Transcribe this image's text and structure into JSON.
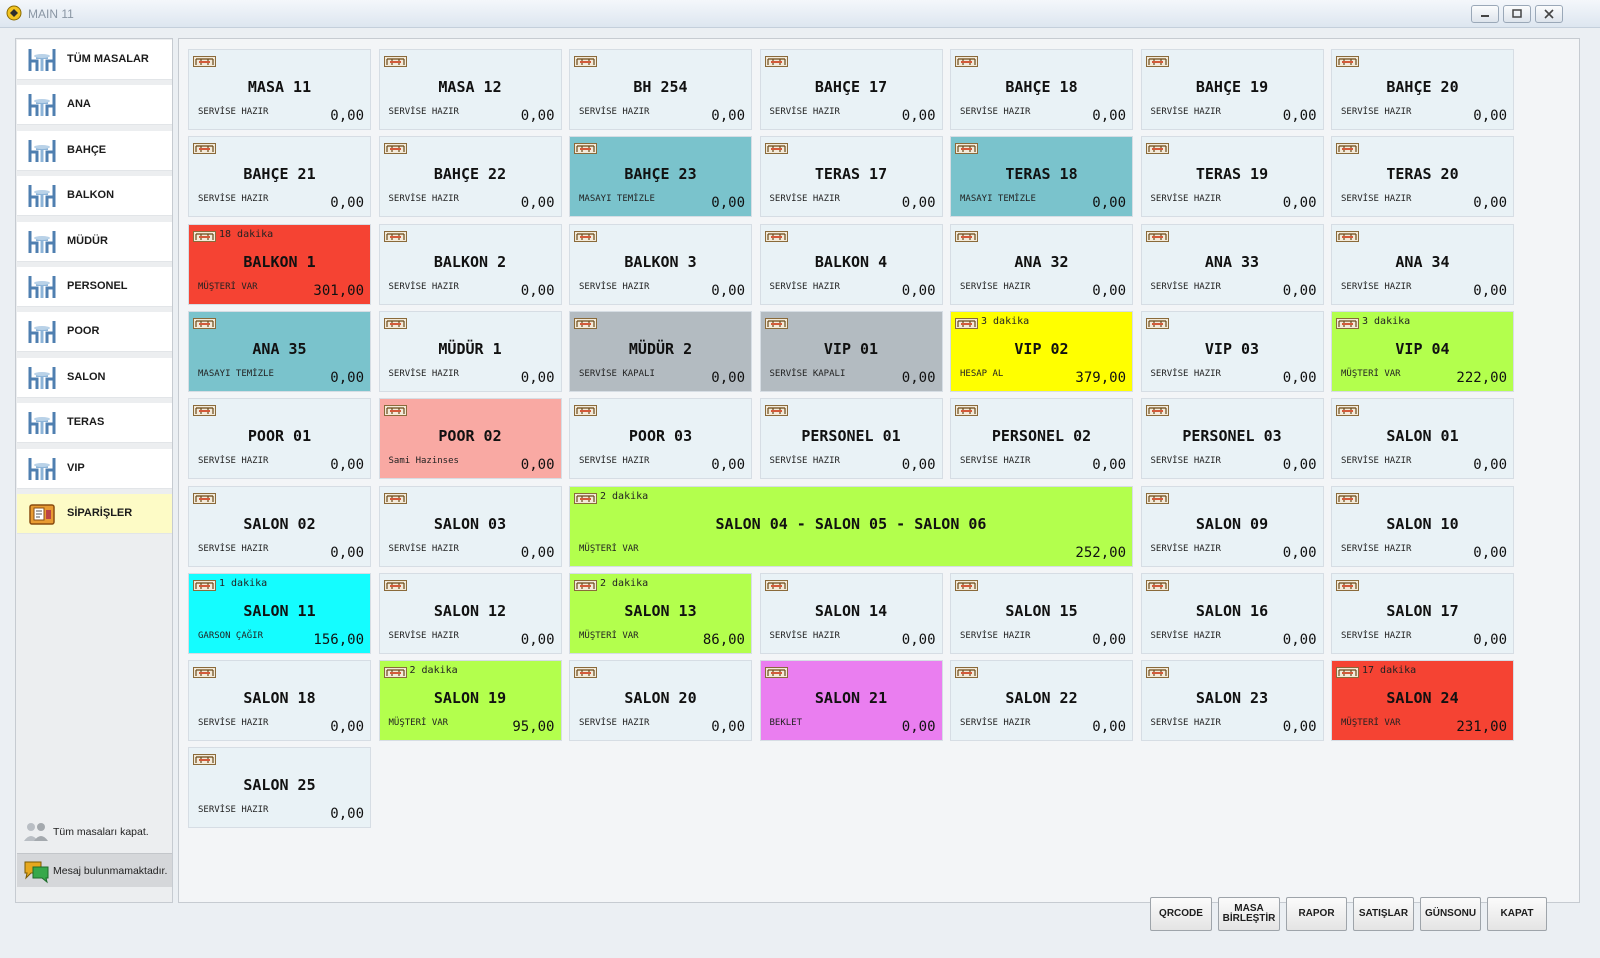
{
  "window": {
    "title": "MAIN 11"
  },
  "sidebar": {
    "categories": [
      {
        "label": "TÜM MASALAR",
        "icon": "table-chairs-icon"
      },
      {
        "label": "ANA",
        "icon": "table-chairs-icon"
      },
      {
        "label": "BAHÇE",
        "icon": "table-chairs-icon"
      },
      {
        "label": "BALKON",
        "icon": "table-chairs-icon"
      },
      {
        "label": "MÜDÜR",
        "icon": "table-chairs-icon"
      },
      {
        "label": "PERSONEL",
        "icon": "table-chairs-icon"
      },
      {
        "label": "POOR",
        "icon": "table-chairs-icon"
      },
      {
        "label": "SALON",
        "icon": "table-chairs-icon"
      },
      {
        "label": "TERAS",
        "icon": "table-chairs-icon"
      },
      {
        "label": "VIP",
        "icon": "table-chairs-icon"
      },
      {
        "label": "SİPARİŞLER",
        "icon": "orders-icon",
        "selected": true
      }
    ],
    "close_all_label": "Tüm masaları kapat.",
    "message_label": "Mesaj bulunmamaktadır."
  },
  "colors": {
    "idle": "#e9f2f6",
    "clean": "#7ac3cc",
    "closed": "#b3bbc1",
    "alert_red": "#f54333",
    "bill_yellow": "#ffff00",
    "customer_green": "#b3ff4d",
    "named_pink": "#f9a9a3",
    "waiter_cyan": "#14fdff",
    "wait_magenta": "#ea7ef0"
  },
  "tables": [
    {
      "name": "MASA 11",
      "status": "SERVİSE HAZIR",
      "amount": "0,00",
      "state": "idle"
    },
    {
      "name": "MASA 12",
      "status": "SERVİSE HAZIR",
      "amount": "0,00",
      "state": "idle"
    },
    {
      "name": "BH 254",
      "status": "SERVİSE HAZIR",
      "amount": "0,00",
      "state": "idle"
    },
    {
      "name": "BAHÇE 17",
      "status": "SERVİSE HAZIR",
      "amount": "0,00",
      "state": "idle"
    },
    {
      "name": "BAHÇE 18",
      "status": "SERVİSE HAZIR",
      "amount": "0,00",
      "state": "idle"
    },
    {
      "name": "BAHÇE 19",
      "status": "SERVİSE HAZIR",
      "amount": "0,00",
      "state": "idle"
    },
    {
      "name": "BAHÇE 20",
      "status": "SERVİSE HAZIR",
      "amount": "0,00",
      "state": "idle"
    },
    {
      "name": "BAHÇE 21",
      "status": "SERVİSE HAZIR",
      "amount": "0,00",
      "state": "idle"
    },
    {
      "name": "BAHÇE 22",
      "status": "SERVİSE HAZIR",
      "amount": "0,00",
      "state": "idle"
    },
    {
      "name": "BAHÇE 23",
      "status": "MASAYI TEMİZLE",
      "amount": "0,00",
      "state": "clean"
    },
    {
      "name": "TERAS 17",
      "status": "SERVİSE HAZIR",
      "amount": "0,00",
      "state": "idle"
    },
    {
      "name": "TERAS 18",
      "status": "MASAYI TEMİZLE",
      "amount": "0,00",
      "state": "clean"
    },
    {
      "name": "TERAS 19",
      "status": "SERVİSE HAZIR",
      "amount": "0,00",
      "state": "idle"
    },
    {
      "name": "TERAS 20",
      "status": "SERVİSE HAZIR",
      "amount": "0,00",
      "state": "idle"
    },
    {
      "name": "BALKON 1",
      "status": "MÜŞTERİ VAR",
      "amount": "301,00",
      "state": "alert_red",
      "time": "18 dakika"
    },
    {
      "name": "BALKON 2",
      "status": "SERVİSE HAZIR",
      "amount": "0,00",
      "state": "idle"
    },
    {
      "name": "BALKON 3",
      "status": "SERVİSE HAZIR",
      "amount": "0,00",
      "state": "idle"
    },
    {
      "name": "BALKON 4",
      "status": "SERVİSE HAZIR",
      "amount": "0,00",
      "state": "idle"
    },
    {
      "name": "ANA 32",
      "status": "SERVİSE HAZIR",
      "amount": "0,00",
      "state": "idle"
    },
    {
      "name": "ANA 33",
      "status": "SERVİSE HAZIR",
      "amount": "0,00",
      "state": "idle"
    },
    {
      "name": "ANA 34",
      "status": "SERVİSE HAZIR",
      "amount": "0,00",
      "state": "idle"
    },
    {
      "name": "ANA 35",
      "status": "MASAYI TEMİZLE",
      "amount": "0,00",
      "state": "clean"
    },
    {
      "name": "MÜDÜR 1",
      "status": "SERVİSE HAZIR",
      "amount": "0,00",
      "state": "idle"
    },
    {
      "name": "MÜDÜR 2",
      "status": "SERVİSE KAPALI",
      "amount": "0,00",
      "state": "closed"
    },
    {
      "name": "VIP 01",
      "status": "SERVİSE KAPALI",
      "amount": "0,00",
      "state": "closed"
    },
    {
      "name": "VIP 02",
      "status": "HESAP AL",
      "amount": "379,00",
      "state": "bill_yellow",
      "time": "3 dakika"
    },
    {
      "name": "VIP 03",
      "status": "SERVİSE HAZIR",
      "amount": "0,00",
      "state": "idle"
    },
    {
      "name": "VIP 04",
      "status": "MÜŞTERİ VAR",
      "amount": "222,00",
      "state": "customer_green",
      "time": "3 dakika"
    },
    {
      "name": "POOR 01",
      "status": "SERVİSE HAZIR",
      "amount": "0,00",
      "state": "idle"
    },
    {
      "name": "POOR 02",
      "status": "Sami Hazinses",
      "amount": "0,00",
      "state": "named_pink"
    },
    {
      "name": "POOR 03",
      "status": "SERVİSE HAZIR",
      "amount": "0,00",
      "state": "idle"
    },
    {
      "name": "PERSONEL 01",
      "status": "SERVİSE HAZIR",
      "amount": "0,00",
      "state": "idle"
    },
    {
      "name": "PERSONEL 02",
      "status": "SERVİSE HAZIR",
      "amount": "0,00",
      "state": "idle"
    },
    {
      "name": "PERSONEL 03",
      "status": "SERVİSE HAZIR",
      "amount": "0,00",
      "state": "idle"
    },
    {
      "name": "SALON 01",
      "status": "SERVİSE HAZIR",
      "amount": "0,00",
      "state": "idle"
    },
    {
      "name": "SALON 02",
      "status": "SERVİSE HAZIR",
      "amount": "0,00",
      "state": "idle"
    },
    {
      "name": "SALON 03",
      "status": "SERVİSE HAZIR",
      "amount": "0,00",
      "state": "idle"
    },
    {
      "name": "SALON 04 - SALON 05 - SALON 06",
      "status": "MÜŞTERİ VAR",
      "amount": "252,00",
      "state": "customer_green",
      "time": "2 dakika",
      "span": 3
    },
    {
      "name": "SALON 09",
      "status": "SERVİSE HAZIR",
      "amount": "0,00",
      "state": "idle"
    },
    {
      "name": "SALON 10",
      "status": "SERVİSE HAZIR",
      "amount": "0,00",
      "state": "idle"
    },
    {
      "name": "SALON 11",
      "status": "GARSON ÇAĞIR",
      "amount": "156,00",
      "state": "waiter_cyan",
      "time": "1 dakika"
    },
    {
      "name": "SALON 12",
      "status": "SERVİSE HAZIR",
      "amount": "0,00",
      "state": "idle"
    },
    {
      "name": "SALON 13",
      "status": "MÜŞTERİ VAR",
      "amount": "86,00",
      "state": "customer_green",
      "time": "2 dakika"
    },
    {
      "name": "SALON 14",
      "status": "SERVİSE HAZIR",
      "amount": "0,00",
      "state": "idle"
    },
    {
      "name": "SALON 15",
      "status": "SERVİSE HAZIR",
      "amount": "0,00",
      "state": "idle"
    },
    {
      "name": "SALON 16",
      "status": "SERVİSE HAZIR",
      "amount": "0,00",
      "state": "idle"
    },
    {
      "name": "SALON 17",
      "status": "SERVİSE HAZIR",
      "amount": "0,00",
      "state": "idle"
    },
    {
      "name": "SALON 18",
      "status": "SERVİSE HAZIR",
      "amount": "0,00",
      "state": "idle"
    },
    {
      "name": "SALON 19",
      "status": "MÜŞTERİ VAR",
      "amount": "95,00",
      "state": "customer_green",
      "time": "2 dakika"
    },
    {
      "name": "SALON 20",
      "status": "SERVİSE HAZIR",
      "amount": "0,00",
      "state": "idle"
    },
    {
      "name": "SALON 21",
      "status": "BEKLET",
      "amount": "0,00",
      "state": "wait_magenta"
    },
    {
      "name": "SALON 22",
      "status": "SERVİSE HAZIR",
      "amount": "0,00",
      "state": "idle"
    },
    {
      "name": "SALON 23",
      "status": "SERVİSE HAZIR",
      "amount": "0,00",
      "state": "idle"
    },
    {
      "name": "SALON 24",
      "status": "MÜŞTERİ VAR",
      "amount": "231,00",
      "state": "alert_red",
      "time": "17 dakika"
    },
    {
      "name": "SALON 25",
      "status": "SERVİSE HAZIR",
      "amount": "0,00",
      "state": "idle"
    }
  ],
  "footer": {
    "buttons": [
      {
        "label": "QRCODE"
      },
      {
        "label": "MASA BİRLEŞTİR",
        "lines": [
          "MASA",
          "BİRLEŞTİR"
        ]
      },
      {
        "label": "RAPOR"
      },
      {
        "label": "SATIŞLAR"
      },
      {
        "label": "GÜNSONU"
      },
      {
        "label": "KAPAT"
      }
    ]
  }
}
